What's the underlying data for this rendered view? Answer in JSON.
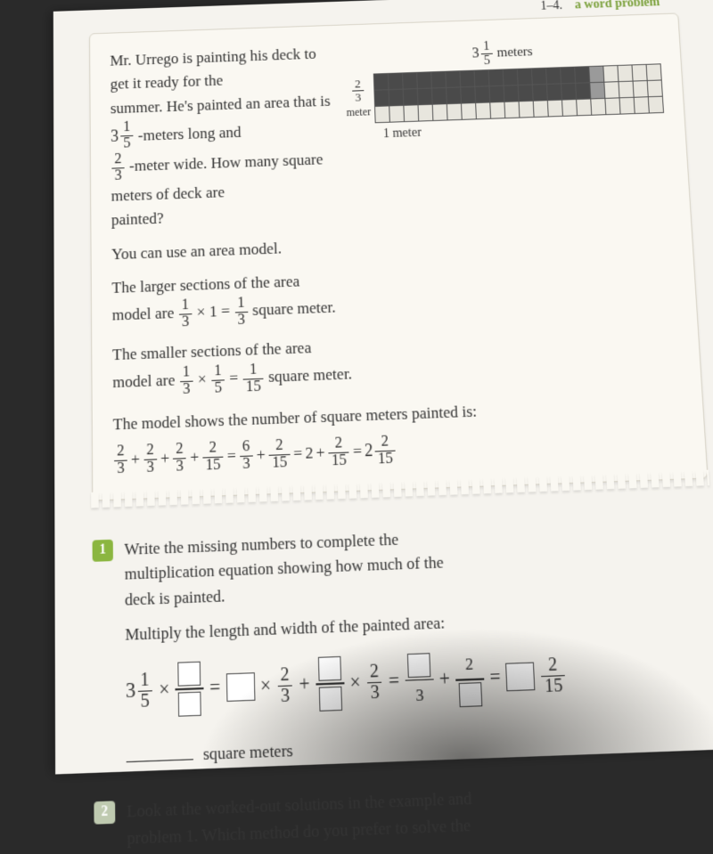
{
  "header": {
    "pages": "1–4.",
    "accent_text": "a word problem"
  },
  "example": {
    "p1a": "Mr. Urrego is painting his deck to get it ready for the",
    "p1b": "summer. He's painted an area that is ",
    "p1c": "-meters long and",
    "p2a": "-meter wide. How many square meters of deck are",
    "p2b": "painted?",
    "p3": "You can use an area model.",
    "p4": "The larger sections of the area",
    "p5a": "model are ",
    "p5b": " square meter.",
    "p6": "The smaller sections of the area",
    "p7a": "model are ",
    "p7b": " square meter.",
    "p8": "The model shows the number of square meters painted is:",
    "length": {
      "whole": "3",
      "num": "1",
      "den": "5"
    },
    "width": {
      "num": "2",
      "den": "3"
    },
    "f13": {
      "num": "1",
      "den": "3"
    },
    "f15": {
      "num": "1",
      "den": "5"
    },
    "f115": {
      "num": "1",
      "den": "15"
    },
    "f215": {
      "num": "2",
      "den": "15"
    },
    "f63": {
      "num": "6",
      "den": "3"
    },
    "sum_final_whole": "2",
    "two": "2",
    "one": "1",
    "model": {
      "top_label_whole": "3",
      "top_label_num": "1",
      "top_label_den": "5",
      "left_num": "2",
      "left_den": "3",
      "left_unit": "meter",
      "bottom": "1 meter",
      "cols_dark": 15,
      "cols_mid": 1,
      "cols_light": 4,
      "rows": 3,
      "rows_dark": 2,
      "colors": {
        "dark": "#4a4a4a",
        "mid": "#9a9a9a",
        "light": "#e8e6de",
        "border": "#555555"
      }
    }
  },
  "q1": {
    "badge": "1",
    "l1": "Write the missing numbers to complete the",
    "l2": "multiplication equation showing how much of the",
    "l3": "deck is painted.",
    "l4": "Multiply the length and width of the painted area:",
    "answer_label": "square meters",
    "final_frac": {
      "num": "2",
      "den": "15"
    },
    "mid_den": "3",
    "mid_num_right": "2",
    "width": {
      "num": "2",
      "den": "3"
    }
  },
  "q2": {
    "badge": "2",
    "l1": "Look at the worked-out solutions in the example and",
    "l2": "problem 1. Which method do you prefer to solve the"
  },
  "ops": {
    "times": "×",
    "eq": "=",
    "plus": "+"
  }
}
